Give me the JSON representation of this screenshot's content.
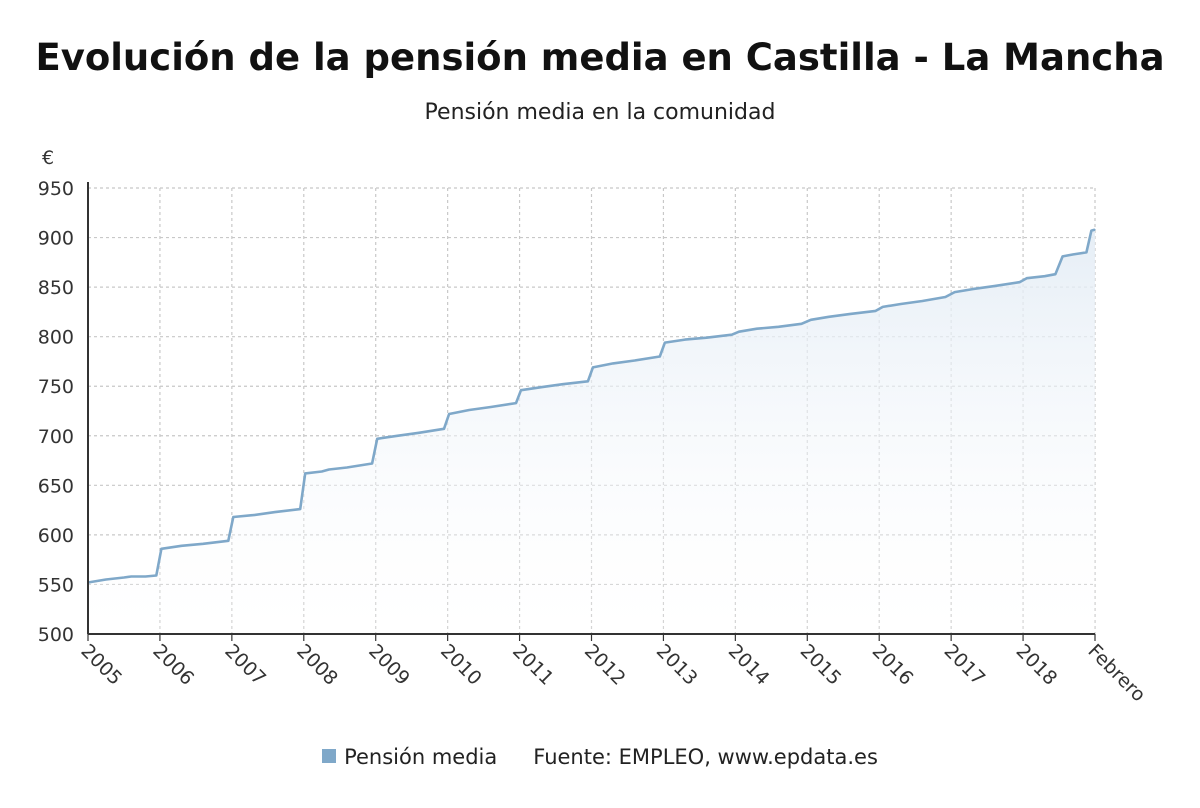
{
  "title": "Evolución de la pensión media en Castilla - La Mancha",
  "subtitle": "Pensión media en la comunidad",
  "legend": {
    "series_label": "Pensión media",
    "source": "Fuente: EMPLEO, www.epdata.es"
  },
  "colors": {
    "line": "#7fa8c9",
    "fill_top": "#e3ecf5",
    "grid": "#c8c8c8",
    "axis": "#333333"
  },
  "chart_data": {
    "type": "area",
    "title": "Evolución de la pensión media en Castilla - La Mancha",
    "subtitle": "Pensión media en la comunidad",
    "ylabel": "€",
    "xlabel": "",
    "ylim": [
      500,
      950
    ],
    "yticks": [
      500,
      550,
      600,
      650,
      700,
      750,
      800,
      850,
      900,
      950
    ],
    "xlim": [
      0,
      14
    ],
    "xticks": [
      {
        "x": 0,
        "label": "2005"
      },
      {
        "x": 1,
        "label": "2006"
      },
      {
        "x": 2,
        "label": "2007"
      },
      {
        "x": 3,
        "label": "2008"
      },
      {
        "x": 4,
        "label": "2009"
      },
      {
        "x": 5,
        "label": "2010"
      },
      {
        "x": 6,
        "label": "2011"
      },
      {
        "x": 7,
        "label": "2012"
      },
      {
        "x": 8,
        "label": "2013"
      },
      {
        "x": 9,
        "label": "2014"
      },
      {
        "x": 10,
        "label": "2015"
      },
      {
        "x": 11,
        "label": "2016"
      },
      {
        "x": 12,
        "label": "2017"
      },
      {
        "x": 13,
        "label": "2018"
      },
      {
        "x": 14,
        "label": "Febrero"
      }
    ],
    "grid": true,
    "legend_position": "bottom",
    "series": [
      {
        "name": "Pensión media",
        "points": [
          [
            0,
            552
          ],
          [
            0.25,
            555
          ],
          [
            0.5,
            557
          ],
          [
            0.6,
            558
          ],
          [
            0.8,
            558
          ],
          [
            0.95,
            559
          ],
          [
            1.02,
            586
          ],
          [
            1.3,
            589
          ],
          [
            1.6,
            591
          ],
          [
            1.95,
            594
          ],
          [
            2.02,
            618
          ],
          [
            2.3,
            620
          ],
          [
            2.6,
            623
          ],
          [
            2.95,
            626
          ],
          [
            3.02,
            662
          ],
          [
            3.25,
            664
          ],
          [
            3.35,
            666
          ],
          [
            3.6,
            668
          ],
          [
            3.95,
            672
          ],
          [
            4.02,
            697
          ],
          [
            4.3,
            700
          ],
          [
            4.6,
            703
          ],
          [
            4.95,
            707
          ],
          [
            5.02,
            722
          ],
          [
            5.3,
            726
          ],
          [
            5.6,
            729
          ],
          [
            5.95,
            733
          ],
          [
            6.02,
            746
          ],
          [
            6.3,
            749
          ],
          [
            6.6,
            752
          ],
          [
            6.95,
            755
          ],
          [
            7.02,
            769
          ],
          [
            7.3,
            773
          ],
          [
            7.6,
            776
          ],
          [
            7.95,
            780
          ],
          [
            8.02,
            794
          ],
          [
            8.3,
            797
          ],
          [
            8.6,
            799
          ],
          [
            8.95,
            802
          ],
          [
            9.05,
            805
          ],
          [
            9.3,
            808
          ],
          [
            9.6,
            810
          ],
          [
            9.92,
            813
          ],
          [
            10.05,
            817
          ],
          [
            10.3,
            820
          ],
          [
            10.6,
            823
          ],
          [
            10.95,
            826
          ],
          [
            11.05,
            830
          ],
          [
            11.3,
            833
          ],
          [
            11.6,
            836
          ],
          [
            11.92,
            840
          ],
          [
            12.05,
            845
          ],
          [
            12.3,
            848
          ],
          [
            12.6,
            851
          ],
          [
            12.95,
            855
          ],
          [
            13.05,
            859
          ],
          [
            13.3,
            861
          ],
          [
            13.45,
            863
          ],
          [
            13.55,
            881
          ],
          [
            13.7,
            883
          ],
          [
            13.88,
            885
          ],
          [
            13.95,
            907
          ],
          [
            14.0,
            908
          ]
        ]
      }
    ]
  }
}
